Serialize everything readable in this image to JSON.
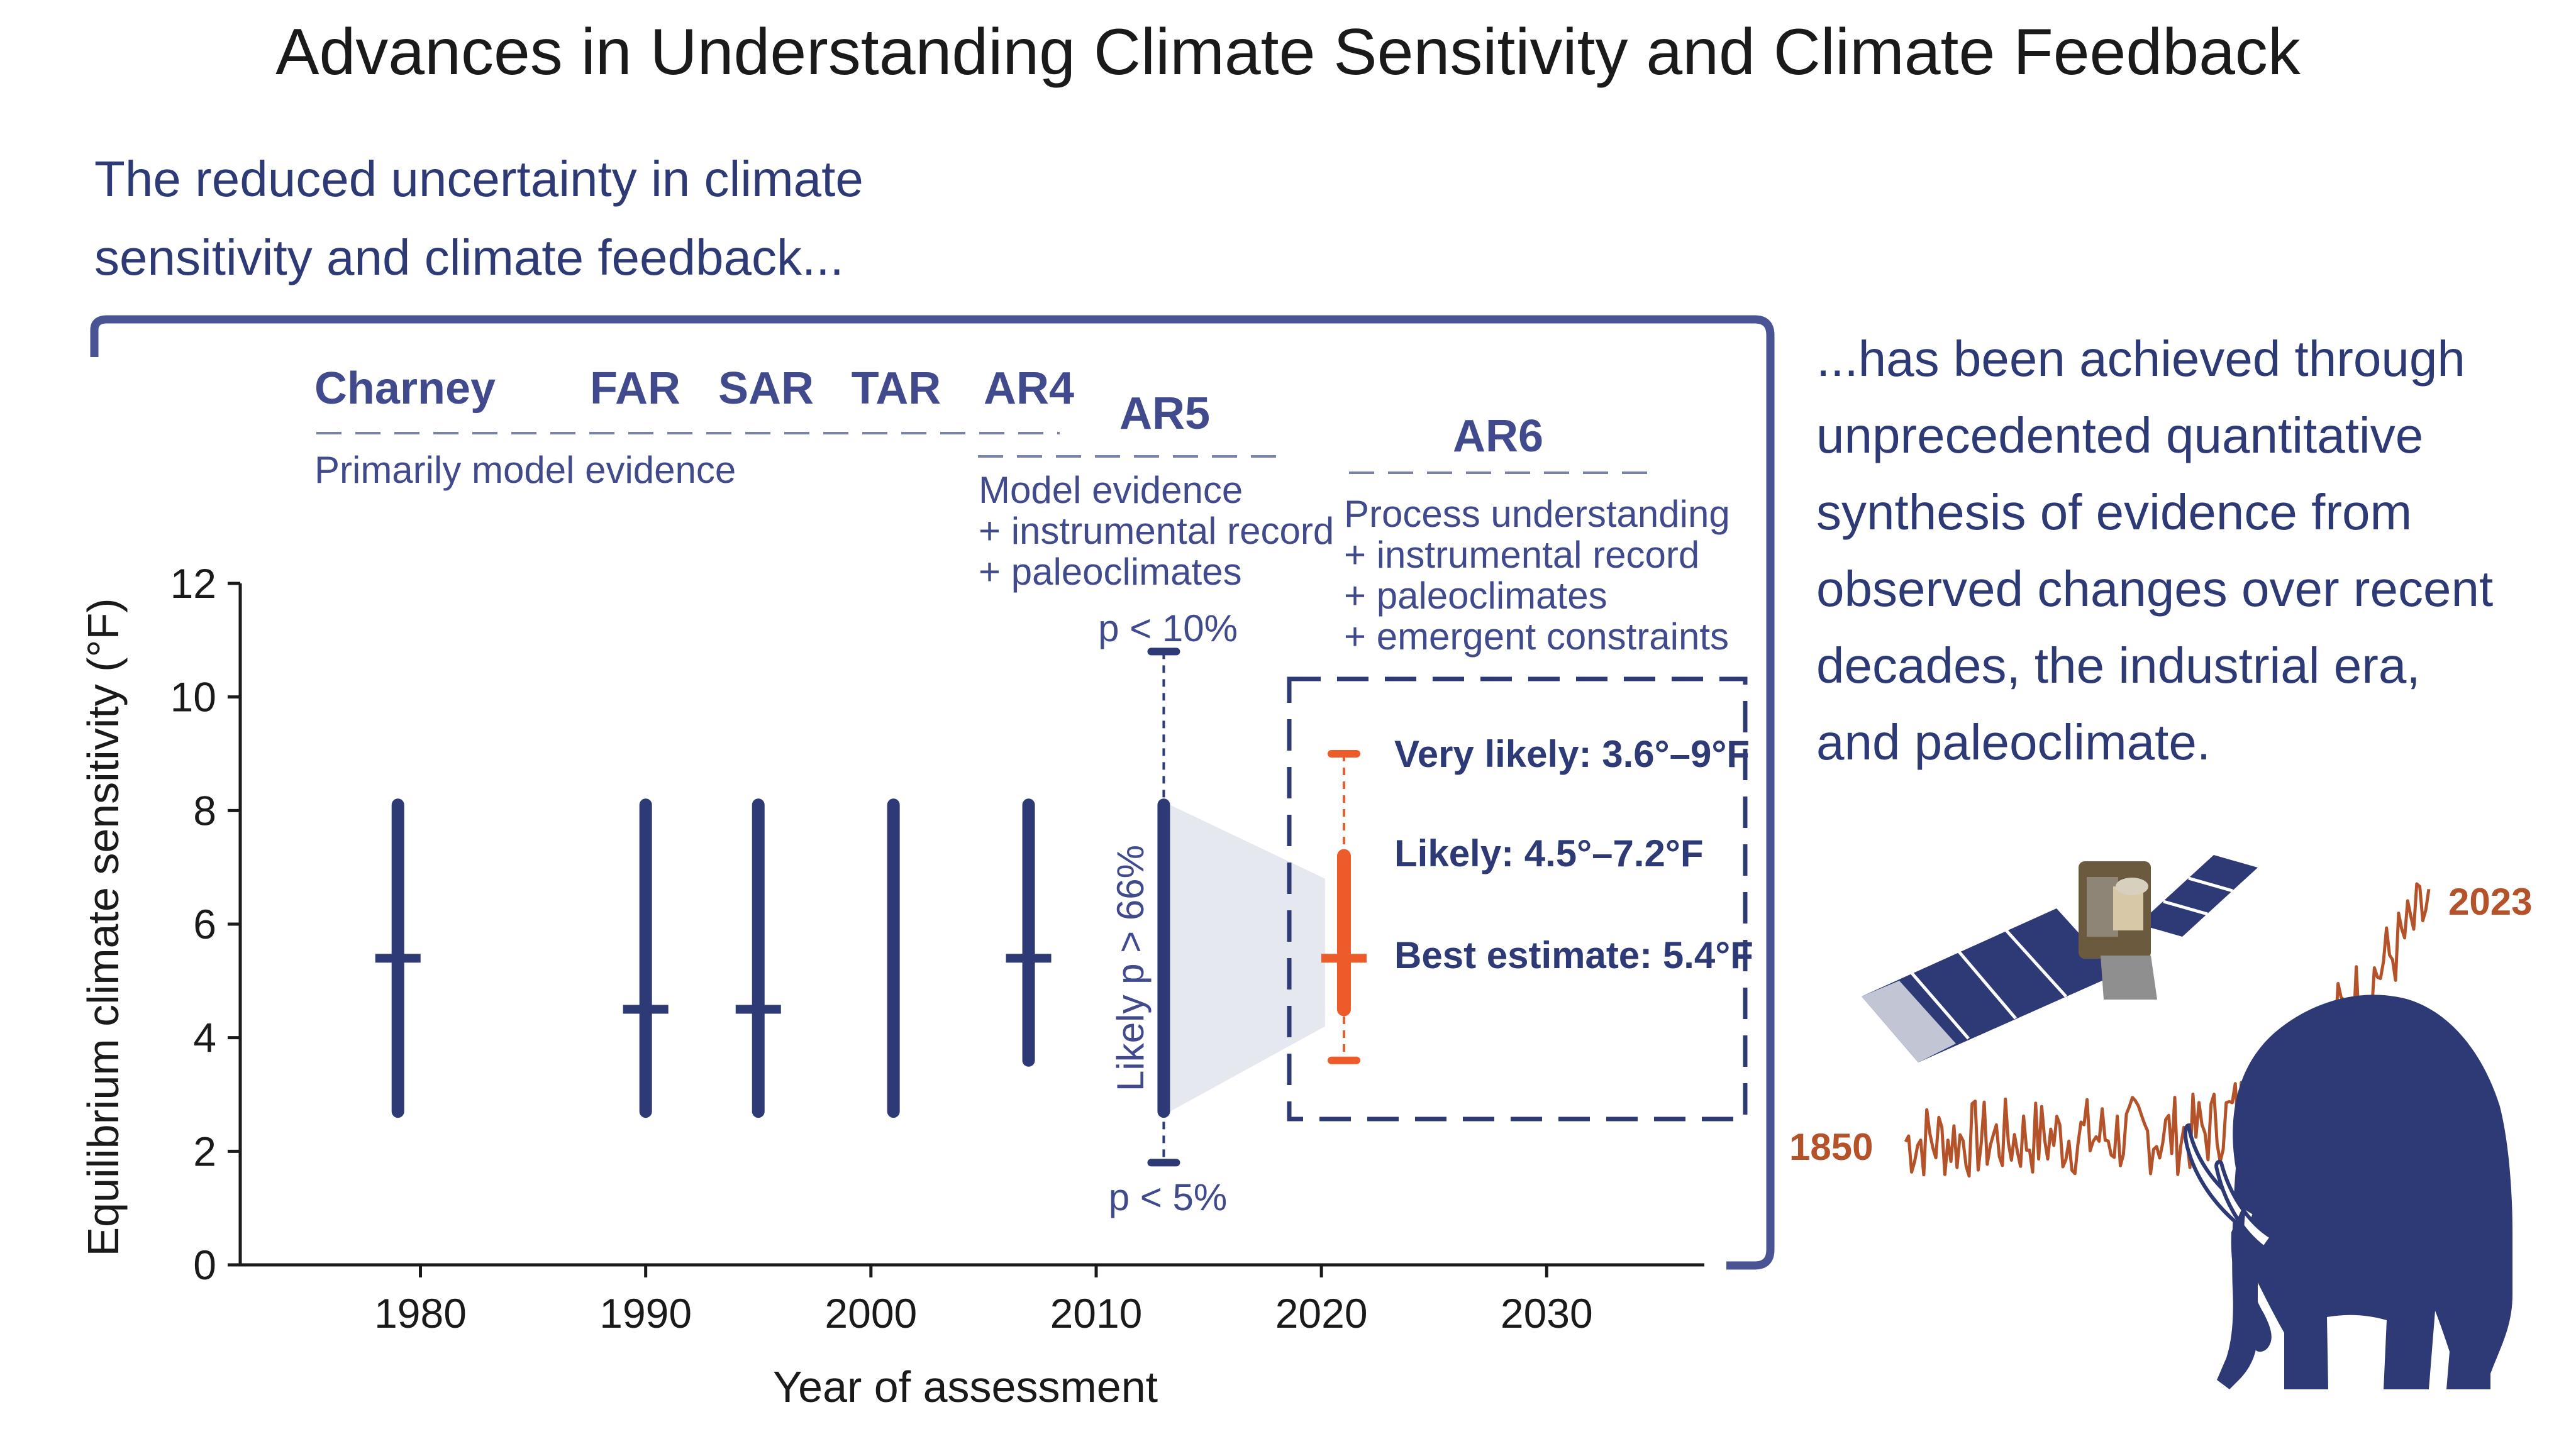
{
  "title": "Advances in Understanding Climate Sensitivity and Climate Feedback",
  "intro": {
    "line1": "The reduced uncertainty in climate",
    "line2": "sensitivity and climate feedback..."
  },
  "side_text": [
    "...has been achieved through",
    "unprecedented quantitative",
    "synthesis of evidence from",
    "observed changes over recent",
    "decades, the industrial era,",
    "and paleoclimate."
  ],
  "assessments": {
    "charney": "Charney",
    "far": "FAR",
    "sar": "SAR",
    "tar": "TAR",
    "ar4": "AR4",
    "ar5": "AR5",
    "ar6": "AR6"
  },
  "evidence": {
    "early": "Primarily model evidence",
    "ar5": [
      "Model evidence",
      "+ instrumental record",
      "+ paleoclimates"
    ],
    "ar6": [
      "Process understanding",
      "+ instrumental record",
      "+ paleoclimates",
      "+ emergent constraints"
    ]
  },
  "ar5_labels": {
    "upper": "p < 10%",
    "lower": "p < 5%",
    "likely": "Likely p > 66%"
  },
  "ar6_labels": {
    "very_likely": "Very likely: 3.6°–9°F",
    "likely": "Likely: 4.5°–7.2°F",
    "best": "Best estimate: 5.4°F"
  },
  "illustration": {
    "start_year": "1850",
    "end_year": "2023",
    "icons": [
      "satellite-icon",
      "temperature-record-icon",
      "mammoth-icon"
    ]
  },
  "colors": {
    "navy": "#2e3a75",
    "bracket": "#4a5394",
    "ar6_orange": "#ee5b2b",
    "record_brown": "#b4532a",
    "shade": "#e6e8ef"
  },
  "chart_data": {
    "type": "range",
    "title": "",
    "xlabel": "Year of assessment",
    "ylabel": "Equilibrium climate sensitivity (°F)",
    "xlim": [
      1972,
      2037
    ],
    "ylim": [
      0,
      12
    ],
    "xticks": [
      1980,
      1990,
      2000,
      2010,
      2020,
      2030
    ],
    "yticks": [
      0,
      2,
      4,
      6,
      8,
      10,
      12
    ],
    "series": [
      {
        "year": 1979,
        "low": 2.7,
        "high": 8.1,
        "best": 5.4
      },
      {
        "year": 1990,
        "low": 2.7,
        "high": 8.1,
        "best": 4.5
      },
      {
        "year": 1995,
        "low": 2.7,
        "high": 8.1,
        "best": 4.5
      },
      {
        "year": 2001,
        "low": 2.7,
        "high": 8.1,
        "best": null
      },
      {
        "year": 2007,
        "low": 3.6,
        "high": 8.1,
        "best": 5.4
      },
      {
        "year": 2013,
        "low": 2.7,
        "high": 8.1,
        "best": null,
        "very_likely_low": 1.8,
        "very_likely_high": 10.8
      },
      {
        "year": 2021,
        "low": 4.5,
        "high": 7.2,
        "best": 5.4,
        "very_likely_low": 3.6,
        "very_likely_high": 9.0
      }
    ]
  }
}
